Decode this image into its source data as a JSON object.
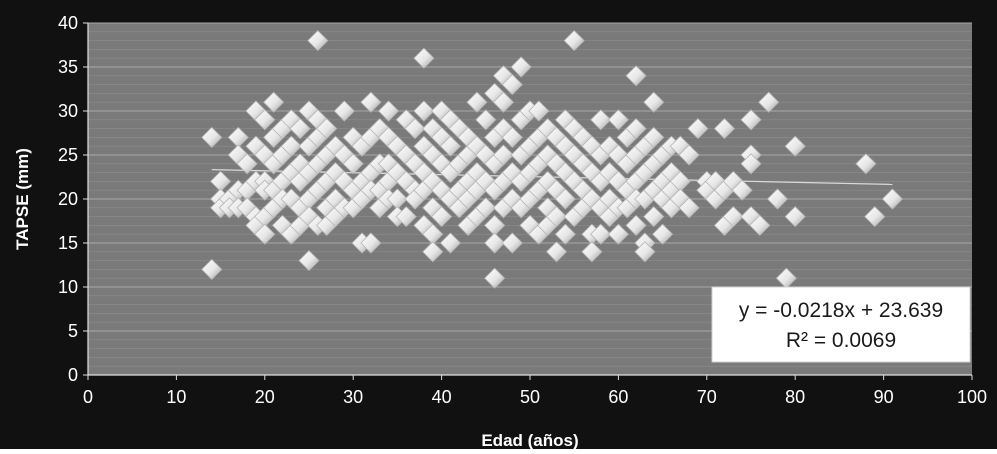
{
  "chart_data": {
    "type": "scatter",
    "title": "",
    "xlabel": "Edad (años)",
    "ylabel": "TAPSE (mm)",
    "xlim": [
      0,
      100
    ],
    "ylim": [
      0,
      40
    ],
    "xticks": [
      "0",
      "10",
      "20",
      "30",
      "40",
      "50",
      "60",
      "70",
      "80",
      "90",
      "100"
    ],
    "yticks": [
      "0",
      "5",
      "10",
      "15",
      "20",
      "25",
      "30",
      "35",
      "40"
    ],
    "grid": "horizontal",
    "marker": "diamond",
    "colors": {
      "background": "#7a7a7a",
      "marker": "#f2f2f2",
      "marker_shadow": "#b5b5b5",
      "trendline": "#d9d9d9",
      "outer": "#111111"
    },
    "trendline": {
      "slope": -0.0218,
      "intercept": 23.639,
      "x_range": [
        14,
        91
      ]
    },
    "annotation": {
      "equation": "y = -0.0218x + 23.639",
      "r2": "R² = 0.0069"
    },
    "points": [
      [
        14,
        27
      ],
      [
        14,
        12
      ],
      [
        15,
        22
      ],
      [
        15,
        20
      ],
      [
        15,
        19
      ],
      [
        16,
        20
      ],
      [
        16,
        19
      ],
      [
        17,
        27
      ],
      [
        17,
        25
      ],
      [
        17,
        21
      ],
      [
        17,
        19
      ],
      [
        18,
        24
      ],
      [
        18,
        21
      ],
      [
        18,
        19
      ],
      [
        19,
        30
      ],
      [
        19,
        26
      ],
      [
        19,
        22
      ],
      [
        19,
        18
      ],
      [
        19,
        17
      ],
      [
        20,
        29
      ],
      [
        20,
        25
      ],
      [
        20,
        22
      ],
      [
        20,
        21
      ],
      [
        20,
        18
      ],
      [
        20,
        16
      ],
      [
        21,
        31
      ],
      [
        21,
        27
      ],
      [
        21,
        24
      ],
      [
        21,
        21
      ],
      [
        21,
        19
      ],
      [
        22,
        28
      ],
      [
        22,
        25
      ],
      [
        22,
        22
      ],
      [
        22,
        20
      ],
      [
        22,
        17
      ],
      [
        23,
        29
      ],
      [
        23,
        26
      ],
      [
        23,
        23
      ],
      [
        23,
        20
      ],
      [
        23,
        16
      ],
      [
        24,
        28
      ],
      [
        24,
        24
      ],
      [
        24,
        22
      ],
      [
        24,
        19
      ],
      [
        24,
        17
      ],
      [
        25,
        30
      ],
      [
        25,
        26
      ],
      [
        25,
        23
      ],
      [
        25,
        20
      ],
      [
        25,
        18
      ],
      [
        25,
        13
      ],
      [
        26,
        38
      ],
      [
        26,
        29
      ],
      [
        26,
        27
      ],
      [
        26,
        24
      ],
      [
        26,
        21
      ],
      [
        26,
        17
      ],
      [
        27,
        28
      ],
      [
        27,
        25
      ],
      [
        27,
        22
      ],
      [
        27,
        19
      ],
      [
        27,
        17
      ],
      [
        28,
        26
      ],
      [
        28,
        23
      ],
      [
        28,
        20
      ],
      [
        28,
        18
      ],
      [
        29,
        30
      ],
      [
        29,
        25
      ],
      [
        29,
        22
      ],
      [
        29,
        19
      ],
      [
        30,
        27
      ],
      [
        30,
        24
      ],
      [
        30,
        21
      ],
      [
        30,
        19
      ],
      [
        31,
        26
      ],
      [
        31,
        22
      ],
      [
        31,
        20
      ],
      [
        31,
        15
      ],
      [
        32,
        31
      ],
      [
        32,
        27
      ],
      [
        32,
        23
      ],
      [
        32,
        21
      ],
      [
        32,
        15
      ],
      [
        33,
        28
      ],
      [
        33,
        24
      ],
      [
        33,
        21
      ],
      [
        33,
        19
      ],
      [
        34,
        30
      ],
      [
        34,
        27
      ],
      [
        34,
        24
      ],
      [
        34,
        22
      ],
      [
        34,
        20
      ],
      [
        35,
        26
      ],
      [
        35,
        23
      ],
      [
        35,
        20
      ],
      [
        35,
        18
      ],
      [
        36,
        29
      ],
      [
        36,
        25
      ],
      [
        36,
        22
      ],
      [
        36,
        18
      ],
      [
        37,
        28
      ],
      [
        37,
        24
      ],
      [
        37,
        21
      ],
      [
        37,
        20
      ],
      [
        38,
        36
      ],
      [
        38,
        30
      ],
      [
        38,
        26
      ],
      [
        38,
        23
      ],
      [
        38,
        21
      ],
      [
        38,
        17
      ],
      [
        39,
        28
      ],
      [
        39,
        25
      ],
      [
        39,
        22
      ],
      [
        39,
        19
      ],
      [
        39,
        16
      ],
      [
        39,
        14
      ],
      [
        40,
        30
      ],
      [
        40,
        27
      ],
      [
        40,
        24
      ],
      [
        40,
        21
      ],
      [
        40,
        18
      ],
      [
        41,
        29
      ],
      [
        41,
        26
      ],
      [
        41,
        23
      ],
      [
        41,
        20
      ],
      [
        41,
        15
      ],
      [
        42,
        28
      ],
      [
        42,
        24
      ],
      [
        42,
        21
      ],
      [
        42,
        19
      ],
      [
        43,
        27
      ],
      [
        43,
        25
      ],
      [
        43,
        22
      ],
      [
        43,
        20
      ],
      [
        43,
        17
      ],
      [
        44,
        31
      ],
      [
        44,
        26
      ],
      [
        44,
        23
      ],
      [
        44,
        21
      ],
      [
        44,
        18
      ],
      [
        45,
        29
      ],
      [
        45,
        25
      ],
      [
        45,
        22
      ],
      [
        45,
        19
      ],
      [
        46,
        32
      ],
      [
        46,
        27
      ],
      [
        46,
        24
      ],
      [
        46,
        21
      ],
      [
        46,
        17
      ],
      [
        46,
        15
      ],
      [
        46,
        11
      ],
      [
        47,
        34
      ],
      [
        47,
        31
      ],
      [
        47,
        28
      ],
      [
        47,
        25
      ],
      [
        47,
        22
      ],
      [
        47,
        19
      ],
      [
        48,
        33
      ],
      [
        48,
        27
      ],
      [
        48,
        23
      ],
      [
        48,
        20
      ],
      [
        48,
        15
      ],
      [
        49,
        35
      ],
      [
        49,
        29
      ],
      [
        49,
        25
      ],
      [
        49,
        22
      ],
      [
        49,
        19
      ],
      [
        50,
        30
      ],
      [
        50,
        26
      ],
      [
        50,
        23
      ],
      [
        50,
        20
      ],
      [
        50,
        17
      ],
      [
        51,
        30
      ],
      [
        51,
        27
      ],
      [
        51,
        24
      ],
      [
        51,
        21
      ],
      [
        51,
        16
      ],
      [
        52,
        28
      ],
      [
        52,
        25
      ],
      [
        52,
        22
      ],
      [
        52,
        19
      ],
      [
        52,
        17
      ],
      [
        53,
        27
      ],
      [
        53,
        24
      ],
      [
        53,
        21
      ],
      [
        53,
        18
      ],
      [
        53,
        14
      ],
      [
        54,
        29
      ],
      [
        54,
        26
      ],
      [
        54,
        23
      ],
      [
        54,
        20
      ],
      [
        54,
        16
      ],
      [
        55,
        38
      ],
      [
        55,
        28
      ],
      [
        55,
        25
      ],
      [
        55,
        22
      ],
      [
        55,
        18
      ],
      [
        56,
        27
      ],
      [
        56,
        24
      ],
      [
        56,
        21
      ],
      [
        56,
        19
      ],
      [
        57,
        26
      ],
      [
        57,
        23
      ],
      [
        57,
        20
      ],
      [
        57,
        16
      ],
      [
        57,
        14
      ],
      [
        58,
        29
      ],
      [
        58,
        25
      ],
      [
        58,
        22
      ],
      [
        58,
        19
      ],
      [
        58,
        16
      ],
      [
        59,
        26
      ],
      [
        59,
        23
      ],
      [
        59,
        20
      ],
      [
        59,
        18
      ],
      [
        60,
        29
      ],
      [
        60,
        25
      ],
      [
        60,
        22
      ],
      [
        60,
        19
      ],
      [
        60,
        16
      ],
      [
        61,
        27
      ],
      [
        61,
        24
      ],
      [
        61,
        21
      ],
      [
        61,
        19
      ],
      [
        62,
        34
      ],
      [
        62,
        28
      ],
      [
        62,
        25
      ],
      [
        62,
        22
      ],
      [
        62,
        20
      ],
      [
        62,
        17
      ],
      [
        63,
        26
      ],
      [
        63,
        23
      ],
      [
        63,
        20
      ],
      [
        63,
        15
      ],
      [
        63,
        14
      ],
      [
        64,
        31
      ],
      [
        64,
        27
      ],
      [
        64,
        24
      ],
      [
        64,
        21
      ],
      [
        64,
        18
      ],
      [
        65,
        25
      ],
      [
        65,
        22
      ],
      [
        65,
        20
      ],
      [
        65,
        16
      ],
      [
        66,
        26
      ],
      [
        66,
        23
      ],
      [
        66,
        21
      ],
      [
        66,
        19
      ],
      [
        67,
        26
      ],
      [
        67,
        22
      ],
      [
        67,
        20
      ],
      [
        68,
        25
      ],
      [
        68,
        19
      ],
      [
        69,
        28
      ],
      [
        70,
        22
      ],
      [
        70,
        21
      ],
      [
        71,
        22
      ],
      [
        71,
        20
      ],
      [
        72,
        28
      ],
      [
        72,
        21
      ],
      [
        72,
        17
      ],
      [
        73,
        22
      ],
      [
        73,
        18
      ],
      [
        74,
        21
      ],
      [
        75,
        29
      ],
      [
        75,
        25
      ],
      [
        75,
        24
      ],
      [
        75,
        18
      ],
      [
        76,
        17
      ],
      [
        77,
        31
      ],
      [
        78,
        20
      ],
      [
        79,
        11
      ],
      [
        80,
        26
      ],
      [
        80,
        18
      ],
      [
        88,
        24
      ],
      [
        89,
        18
      ],
      [
        91,
        20
      ]
    ]
  }
}
